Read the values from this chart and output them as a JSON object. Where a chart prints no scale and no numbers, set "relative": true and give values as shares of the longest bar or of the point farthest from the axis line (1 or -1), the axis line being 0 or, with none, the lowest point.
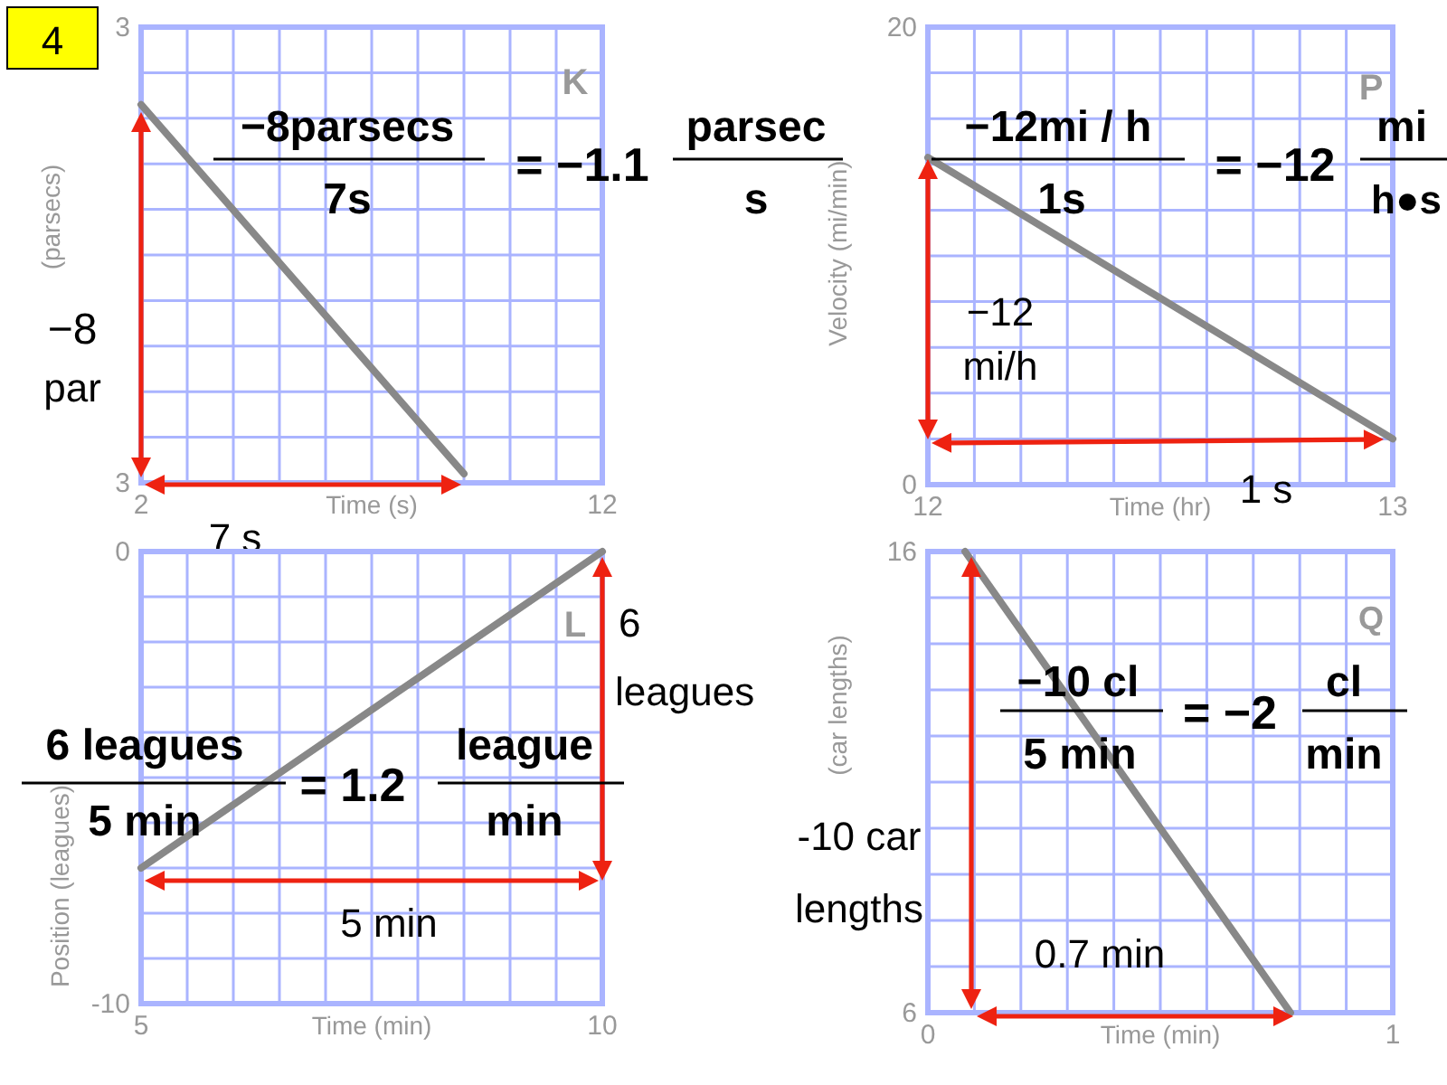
{
  "chart_data": [
    {
      "type": "line",
      "relative": true,
      "xlabel": "Time (s)",
      "ylabel": "(parsecs)",
      "x": [
        2,
        9
      ],
      "values": [
        1,
        0.024
      ],
      "color": "#888888",
      "xlim": [
        2,
        12
      ],
      "xticks": [
        2,
        {
          "value": 3,
          "label": null
        },
        {
          "value": 4,
          "label": null
        },
        {
          "value": 5,
          "label": null
        },
        {
          "value": 6,
          "label": null
        },
        {
          "value": 7,
          "label": null
        },
        {
          "value": 8,
          "label": null
        },
        {
          "value": 9,
          "label": null
        },
        {
          "value": 10,
          "label": null
        },
        {
          "value": 11,
          "label": null
        },
        12
      ],
      "grid": true,
      "annotations": [
        "4",
        "K",
        "−8parsecs",
        "7s",
        "= −1.1",
        "parsec",
        "s",
        "−8",
        "par",
        "7 s",
        "3",
        "3"
      ]
    },
    {
      "type": "line",
      "xlabel": "Time (hr)",
      "ylabel": "Velocity (mi/min)",
      "x": [
        12,
        13
      ],
      "values": [
        14.3,
        2
      ],
      "color": "#888888",
      "xlim": [
        12,
        13
      ],
      "ylim": [
        0,
        20
      ],
      "xticks": [
        12,
        {
          "value": 12.1,
          "label": null
        },
        {
          "value": 12.2,
          "label": null
        },
        {
          "value": 12.3,
          "label": null
        },
        {
          "value": 12.4,
          "label": null
        },
        {
          "value": 12.5,
          "label": null
        },
        {
          "value": 12.6,
          "label": null
        },
        {
          "value": 12.7,
          "label": null
        },
        {
          "value": 12.8,
          "label": null
        },
        {
          "value": 12.9,
          "label": null
        },
        13
      ],
      "yticks": [
        0,
        {
          "value": 2,
          "label": null
        },
        {
          "value": 4,
          "label": null
        },
        {
          "value": 6,
          "label": null
        },
        {
          "value": 8,
          "label": null
        },
        {
          "value": 10,
          "label": null
        },
        {
          "value": 12,
          "label": null
        },
        {
          "value": 14,
          "label": null
        },
        {
          "value": 16,
          "label": null
        },
        {
          "value": 18,
          "label": null
        },
        20
      ],
      "grid": true,
      "annotations": [
        "P",
        "−12mi / h",
        "1s",
        "= −12",
        "mi",
        "h●s",
        "−12",
        "mi/h",
        "1 s"
      ]
    },
    {
      "type": "line",
      "xlabel": "Time (min)",
      "ylabel": "Position (leagues)",
      "x": [
        5,
        10
      ],
      "values": [
        -7,
        0
      ],
      "color": "#888888",
      "xlim": [
        5,
        10
      ],
      "ylim": [
        -10,
        0
      ],
      "xticks": [
        5,
        {
          "value": 5.5,
          "label": null
        },
        {
          "value": 6,
          "label": null
        },
        {
          "value": 6.5,
          "label": null
        },
        {
          "value": 7,
          "label": null
        },
        {
          "value": 7.5,
          "label": null
        },
        {
          "value": 8,
          "label": null
        },
        {
          "value": 8.5,
          "label": null
        },
        {
          "value": 9,
          "label": null
        },
        {
          "value": 9.5,
          "label": null
        },
        10
      ],
      "yticks": [
        -10,
        {
          "value": -9,
          "label": null
        },
        {
          "value": -8,
          "label": null
        },
        {
          "value": -7,
          "label": null
        },
        {
          "value": -6,
          "label": null
        },
        {
          "value": -5,
          "label": null
        },
        {
          "value": -4,
          "label": null
        },
        {
          "value": -3,
          "label": null
        },
        {
          "value": -2,
          "label": null
        },
        {
          "value": -1,
          "label": null
        },
        0
      ],
      "grid": true,
      "annotations": [
        "L",
        "6",
        "leagues",
        "6 leagues",
        "5 min",
        "= 1.2",
        "league",
        "min",
        "5 min"
      ]
    },
    {
      "type": "line",
      "xlabel": "Time (min)",
      "ylabel": "(car lengths)",
      "x": [
        0.08,
        0.78
      ],
      "values": [
        16,
        6
      ],
      "color": "#888888",
      "xlim": [
        0,
        1
      ],
      "ylim": [
        6,
        16
      ],
      "xticks": [
        0,
        {
          "value": 0.1,
          "label": null
        },
        {
          "value": 0.2,
          "label": null
        },
        {
          "value": 0.3,
          "label": null
        },
        {
          "value": 0.4,
          "label": null
        },
        {
          "value": 0.5,
          "label": null
        },
        {
          "value": 0.6,
          "label": null
        },
        {
          "value": 0.7,
          "label": null
        },
        {
          "value": 0.8,
          "label": null
        },
        {
          "value": 0.9,
          "label": null
        },
        1
      ],
      "yticks": [
        6,
        {
          "value": 7,
          "label": null
        },
        {
          "value": 8,
          "label": null
        },
        {
          "value": 9,
          "label": null
        },
        {
          "value": 10,
          "label": null
        },
        {
          "value": 11,
          "label": null
        },
        {
          "value": 12,
          "label": null
        },
        {
          "value": 13,
          "label": null
        },
        {
          "value": 14,
          "label": null
        },
        {
          "value": 15,
          "label": null
        },
        16
      ],
      "grid": true,
      "annotations": [
        "Q",
        "−10 cl",
        "5 min",
        "= −2",
        "cl",
        "min",
        "-10 car",
        "lengths",
        "0.7 min"
      ]
    }
  ]
}
